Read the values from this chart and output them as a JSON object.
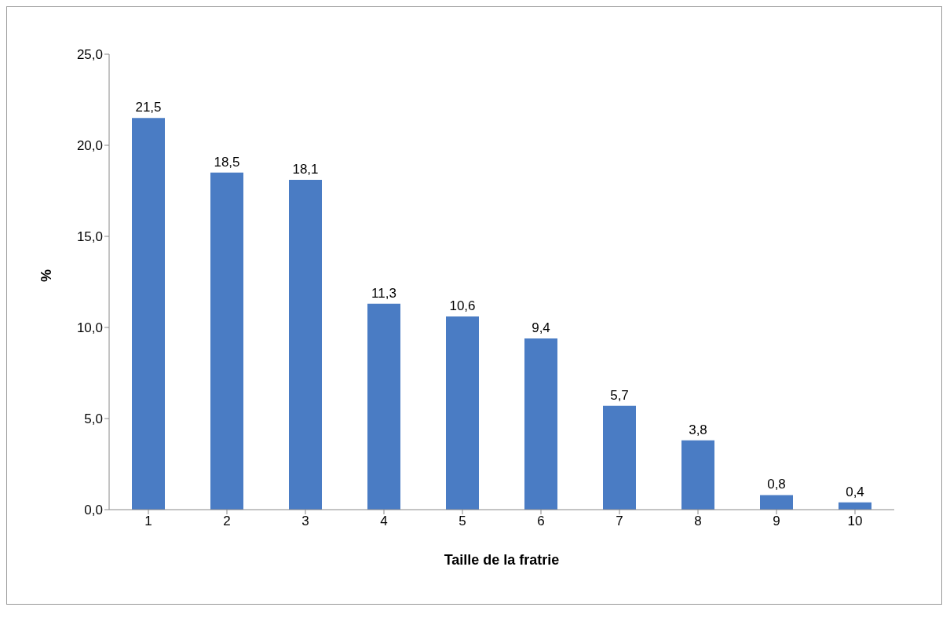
{
  "chart_data": {
    "type": "bar",
    "xlabel": "Taille de la fratrie",
    "ylabel": "%",
    "categories": [
      "1",
      "2",
      "3",
      "4",
      "5",
      "6",
      "7",
      "8",
      "9",
      "10"
    ],
    "values": [
      21.5,
      18.5,
      18.1,
      11.3,
      10.6,
      9.4,
      5.7,
      3.8,
      0.8,
      0.4
    ],
    "value_labels": [
      "21,5",
      "18,5",
      "18,1",
      "11,3",
      "10,6",
      "9,4",
      "5,7",
      "3,8",
      "0,8",
      "0,4"
    ],
    "color": "#4a7cc4",
    "ylim": [
      0,
      25
    ],
    "yticks": [
      {
        "value": 0,
        "label": "0,0"
      },
      {
        "value": 5,
        "label": "5,0"
      },
      {
        "value": 10,
        "label": "10,0"
      },
      {
        "value": 15,
        "label": "15,0"
      },
      {
        "value": 20,
        "label": "20,0"
      },
      {
        "value": 25,
        "label": "25,0"
      }
    ],
    "grid": false,
    "legend": false
  }
}
